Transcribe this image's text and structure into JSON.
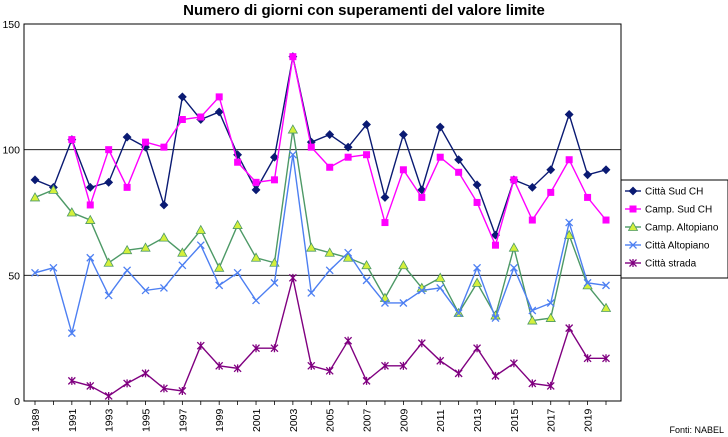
{
  "chart_data": {
    "type": "line",
    "title": "Numero di giorni con superamenti del valore limite",
    "source": "Fonti: NABEL",
    "xlabel": "",
    "ylabel": "",
    "x": [
      1989,
      1990,
      1991,
      1992,
      1993,
      1994,
      1995,
      1996,
      1997,
      1998,
      1999,
      2000,
      2001,
      2002,
      2003,
      2004,
      2005,
      2006,
      2007,
      2008,
      2009,
      2010,
      2011,
      2012,
      2013,
      2014,
      2015,
      2016,
      2017,
      2018,
      2019,
      2020
    ],
    "x_tick_labels": [
      "1989",
      "1991",
      "1993",
      "1995",
      "1997",
      "1999",
      "2001",
      "2003",
      "2005",
      "2007",
      "2009",
      "2011",
      "2013",
      "2015",
      "2017",
      "2019"
    ],
    "ylim": [
      0,
      150
    ],
    "y_ticks": [
      0,
      50,
      100,
      150
    ],
    "grid": "horizontal at 50, 100",
    "legend_position": "right",
    "series": [
      {
        "name": "Città Sud CH",
        "color": "#0a1a73",
        "marker": "diamond",
        "values": [
          88,
          85,
          104,
          85,
          87,
          105,
          101,
          78,
          121,
          112,
          115,
          98,
          84,
          97,
          137,
          103,
          106,
          101,
          110,
          81,
          106,
          84,
          109,
          96,
          86,
          66,
          88,
          85,
          92,
          114,
          90,
          92
        ]
      },
      {
        "name": "Camp. Sud CH",
        "color": "#ff00ff",
        "marker": "square",
        "values": [
          null,
          null,
          104,
          78,
          100,
          85,
          103,
          101,
          112,
          113,
          121,
          95,
          87,
          88,
          137,
          101,
          93,
          97,
          98,
          71,
          92,
          81,
          97,
          91,
          79,
          62,
          88,
          72,
          83,
          96,
          81,
          72
        ]
      },
      {
        "name": "Camp. Altopiano",
        "color": "#4d9966",
        "marker": "triangle",
        "values": [
          81,
          84,
          75,
          72,
          55,
          60,
          61,
          65,
          59,
          68,
          53,
          70,
          57,
          55,
          108,
          61,
          59,
          57,
          54,
          41,
          54,
          45,
          49,
          35,
          47,
          34,
          61,
          32,
          33,
          66,
          46,
          37
        ]
      },
      {
        "name": "Città Altopiano",
        "color": "#4d7ff2",
        "marker": "x",
        "values": [
          51,
          53,
          27,
          57,
          42,
          52,
          44,
          45,
          54,
          62,
          46,
          51,
          40,
          47,
          98,
          43,
          52,
          59,
          48,
          39,
          39,
          44,
          45,
          35,
          53,
          33,
          53,
          36,
          39,
          71,
          47,
          46
        ]
      },
      {
        "name": "Città strada",
        "color": "#800080",
        "marker": "star",
        "values": [
          null,
          null,
          8,
          6,
          2,
          7,
          11,
          5,
          4,
          22,
          14,
          13,
          21,
          21,
          49,
          14,
          12,
          24,
          8,
          14,
          14,
          23,
          16,
          11,
          21,
          10,
          15,
          7,
          6,
          29,
          17,
          17
        ]
      }
    ]
  }
}
